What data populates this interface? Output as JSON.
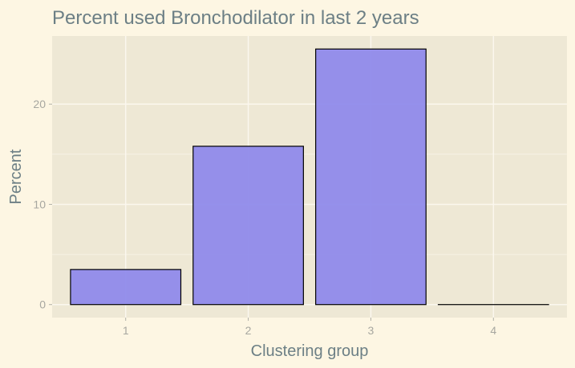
{
  "chart_data": {
    "type": "bar",
    "title": "Percent used Bronchodilator in last 2 years",
    "xlabel": "Clustering group",
    "ylabel": "Percent",
    "categories": [
      "1",
      "2",
      "3",
      "4"
    ],
    "values": [
      3.5,
      15.8,
      25.5,
      0.0
    ],
    "yticks": [
      0,
      10,
      20
    ],
    "ylim": [
      -1.3,
      26.8
    ],
    "grid": true,
    "legend": "none",
    "colors": {
      "background": "#fdf6e3",
      "panel": "#eee8d5",
      "gridline": "#fbf7ee",
      "bar_fill": "#8f8aeb",
      "bar_stroke": "#000000",
      "text": "#6c7f85",
      "tick_text": "#a7a7a0"
    }
  }
}
